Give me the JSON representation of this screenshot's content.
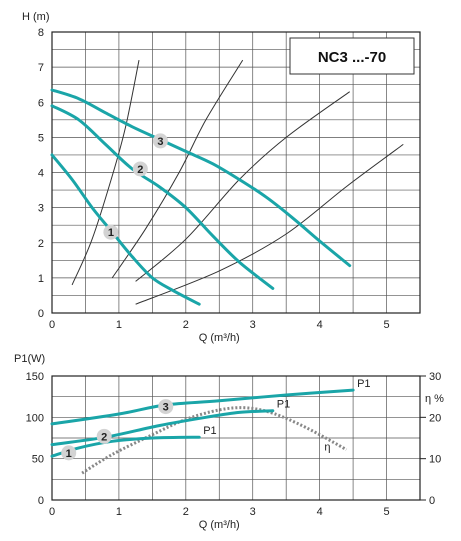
{
  "chart_data": [
    {
      "type": "line",
      "title": "NC3 ...-70",
      "ylabel": "H (m)",
      "xlabel": "Q (m³/h)",
      "xlim": [
        0,
        5.5
      ],
      "ylim": [
        0,
        8
      ],
      "xticks": [
        "0",
        "1",
        "2",
        "3",
        "4",
        "5"
      ],
      "yticks": [
        "0",
        "1",
        "2",
        "3",
        "4",
        "5",
        "6",
        "7",
        "8"
      ],
      "grid": true,
      "series": [
        {
          "name": "1",
          "points": [
            [
              0.0,
              4.5
            ],
            [
              0.3,
              3.8
            ],
            [
              0.6,
              3.0
            ],
            [
              0.9,
              2.3
            ],
            [
              1.2,
              1.6
            ],
            [
              1.5,
              1.0
            ],
            [
              1.8,
              0.65
            ],
            [
              2.2,
              0.25
            ]
          ],
          "label_at": [
            0.88,
            2.3
          ]
        },
        {
          "name": "2",
          "points": [
            [
              0.0,
              5.9
            ],
            [
              0.4,
              5.5
            ],
            [
              0.8,
              4.8
            ],
            [
              1.2,
              4.1
            ],
            [
              1.6,
              3.6
            ],
            [
              2.0,
              3.0
            ],
            [
              2.4,
              2.2
            ],
            [
              2.8,
              1.45
            ],
            [
              3.3,
              0.7
            ]
          ],
          "label_at": [
            1.32,
            4.1
          ]
        },
        {
          "name": "3",
          "points": [
            [
              0.0,
              6.35
            ],
            [
              0.4,
              6.1
            ],
            [
              0.8,
              5.7
            ],
            [
              1.2,
              5.3
            ],
            [
              1.6,
              4.95
            ],
            [
              2.0,
              4.6
            ],
            [
              2.4,
              4.25
            ],
            [
              2.8,
              3.8
            ],
            [
              3.2,
              3.3
            ],
            [
              3.6,
              2.7
            ],
            [
              4.0,
              2.05
            ],
            [
              4.45,
              1.35
            ]
          ],
          "label_at": [
            1.62,
            4.9
          ]
        }
      ],
      "system_curves": [
        [
          [
            0.3,
            0.8
          ],
          [
            0.6,
            2.1
          ],
          [
            0.9,
            3.9
          ],
          [
            1.1,
            5.3
          ],
          [
            1.3,
            7.2
          ]
        ],
        [
          [
            0.9,
            1.0
          ],
          [
            1.4,
            2.4
          ],
          [
            1.9,
            4.0
          ],
          [
            2.3,
            5.5
          ],
          [
            2.85,
            7.2
          ]
        ],
        [
          [
            1.25,
            0.9
          ],
          [
            2.0,
            2.1
          ],
          [
            2.8,
            3.8
          ],
          [
            3.5,
            5.0
          ],
          [
            4.45,
            6.3
          ]
        ],
        [
          [
            1.25,
            0.25
          ],
          [
            2.5,
            1.2
          ],
          [
            3.5,
            2.25
          ],
          [
            4.4,
            3.6
          ],
          [
            5.25,
            4.8
          ]
        ]
      ]
    },
    {
      "type": "line",
      "ylabel": "P1(W)",
      "y2label": "η %",
      "xlabel": "Q (m³/h)",
      "xlim": [
        0,
        5.5
      ],
      "ylim": [
        0,
        150
      ],
      "y2lim": [
        0,
        30
      ],
      "xticks": [
        "0",
        "1",
        "2",
        "3",
        "4",
        "5"
      ],
      "yticks": [
        "0",
        "50",
        "100",
        "150"
      ],
      "y2ticks": [
        "0",
        "10",
        "20",
        "30"
      ],
      "grid": true,
      "series": [
        {
          "name": "1",
          "curve_label": "P1",
          "points": [
            [
              0.0,
              53
            ],
            [
              0.4,
              63
            ],
            [
              0.9,
              71
            ],
            [
              1.5,
              75
            ],
            [
              2.2,
              76
            ]
          ],
          "label_at": [
            0.25,
            57
          ]
        },
        {
          "name": "2",
          "curve_label": "P1",
          "points": [
            [
              0.0,
              67
            ],
            [
              0.8,
              76
            ],
            [
              1.6,
              90
            ],
            [
              2.3,
              100
            ],
            [
              2.8,
              106
            ],
            [
              3.3,
              108
            ]
          ],
          "label_at": [
            0.78,
            77
          ]
        },
        {
          "name": "3",
          "curve_label": "P1",
          "points": [
            [
              0.0,
              92
            ],
            [
              1.0,
              104
            ],
            [
              1.7,
              115
            ],
            [
              2.5,
              120
            ],
            [
              3.5,
              127
            ],
            [
              4.5,
              133
            ]
          ],
          "label_at": [
            1.7,
            113
          ]
        }
      ],
      "efficiency": {
        "name": "η",
        "points": [
          [
            0.45,
            6.5
          ],
          [
            0.9,
            11.0
          ],
          [
            1.5,
            15.8
          ],
          [
            2.0,
            19.5
          ],
          [
            2.5,
            21.8
          ],
          [
            2.9,
            22.3
          ],
          [
            3.3,
            21.0
          ],
          [
            3.8,
            17.5
          ],
          [
            4.4,
            12.2
          ]
        ]
      }
    }
  ]
}
